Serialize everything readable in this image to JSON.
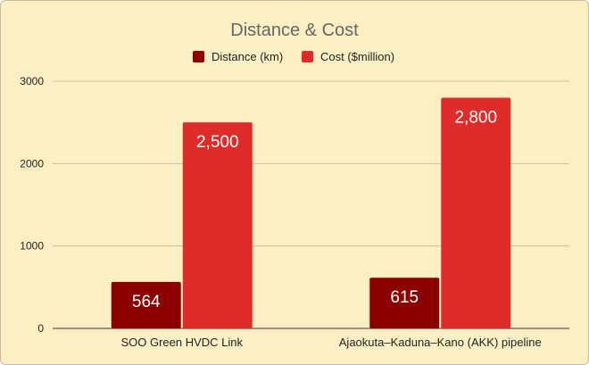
{
  "chart_data": {
    "type": "bar",
    "title": "Distance & Cost",
    "categories": [
      "SOO Green HVDC Link",
      "Ajaokuta–Kaduna–Kano (AKK) pipeline"
    ],
    "series": [
      {
        "name": "Distance (km)",
        "values": [
          564,
          615
        ],
        "labels": [
          "564",
          "615"
        ],
        "color": "#8b0000"
      },
      {
        "name": "Cost ($million)",
        "values": [
          2500,
          2800
        ],
        "labels": [
          "2,500",
          "2,800"
        ],
        "color": "#e02b2b"
      }
    ],
    "y_ticks": [
      "0",
      "1000",
      "2000",
      "3000"
    ],
    "ylim": [
      0,
      3000
    ],
    "legend_position": "top",
    "grid": true
  },
  "colors": {
    "background": "#fdefc4",
    "title": "#666666"
  }
}
